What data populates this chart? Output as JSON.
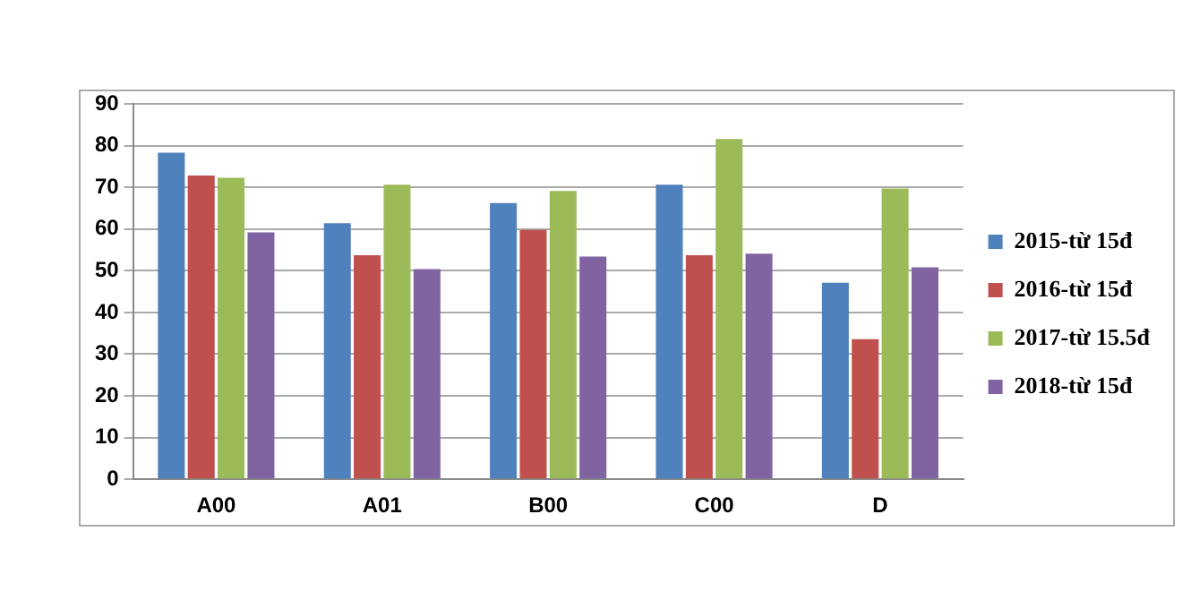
{
  "chart_data": {
    "type": "bar",
    "categories": [
      "A00",
      "A01",
      "B00",
      "C00",
      "D"
    ],
    "series": [
      {
        "name": "2015-từ 15đ",
        "color": "#4f81bd",
        "values": [
          78.3,
          61.4,
          66.2,
          70.6,
          47.1
        ]
      },
      {
        "name": "2016-từ 15đ",
        "color": "#c0504d",
        "values": [
          72.8,
          53.7,
          59.8,
          53.7,
          33.6
        ]
      },
      {
        "name": "2017-từ 15.5đ",
        "color": "#9bbb59",
        "values": [
          72.3,
          70.6,
          69.1,
          81.6,
          69.7
        ]
      },
      {
        "name": "2018-từ 15đ",
        "color": "#8064a2",
        "values": [
          59.2,
          50.4,
          53.4,
          54.1,
          50.8
        ]
      }
    ],
    "ylim": [
      0,
      90
    ],
    "yticks": [
      0,
      10,
      20,
      30,
      40,
      50,
      60,
      70,
      80,
      90
    ],
    "grid": "y",
    "legend": "right"
  }
}
